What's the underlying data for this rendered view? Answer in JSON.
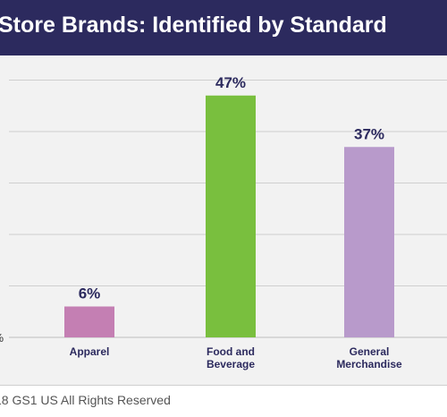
{
  "title": "Store Brands: Identified by Standard",
  "footer": {
    "copyright": "18 GS1 US All Rights Reserved"
  },
  "chart_data": {
    "type": "bar",
    "title": "Store Brands: Identified by Standard",
    "categories": [
      [
        "Apparel"
      ],
      [
        "Food and",
        "Beverage"
      ],
      [
        "General",
        "Merchandise"
      ]
    ],
    "values": [
      6,
      47,
      37
    ],
    "data_labels": [
      "6%",
      "47%",
      "37%"
    ],
    "colors": [
      "#c47fb3",
      "#79bf3e",
      "#b89acb"
    ],
    "ylim": [
      0,
      50
    ],
    "grid": true,
    "y_tick_label_visible": "%",
    "legend": "none"
  },
  "colors": {
    "banner": "#2c2a5e",
    "value_label": "#2c2a5e",
    "category_label": "#2c2a5e",
    "gridline": "#cfcfcf"
  }
}
